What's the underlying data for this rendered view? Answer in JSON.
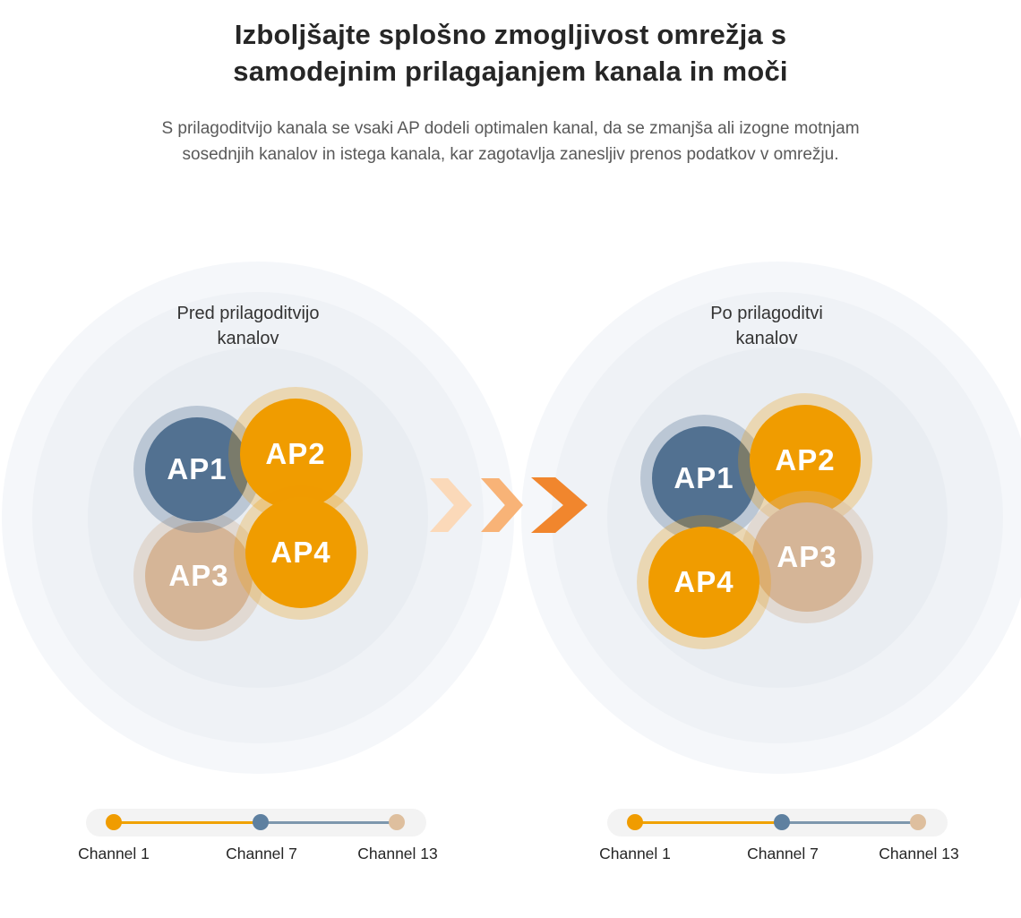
{
  "page": {
    "title_lines": [
      "Izboljšajte splošno zmogljivost omrežja s",
      "samodejnim prilagajanjem kanala in moči"
    ],
    "subtitle_lines": [
      "S prilagoditvijo kanala se vsaki AP dodeli optimalen kanal, da se zmanjša ali izogne motnjam",
      "sosednjih kanalov in istega kanala, kar zagotavlja zanesljiv prenos podatkov v omrežju."
    ]
  },
  "before": {
    "heading_lines": [
      "Pred prilagoditvijo",
      "kanalov"
    ],
    "aps": [
      {
        "label": "AP1",
        "channel_color": "#527191"
      },
      {
        "label": "AP2",
        "channel_color": "#f09c00"
      },
      {
        "label": "AP3",
        "channel_color": "#d5b597"
      },
      {
        "label": "AP4",
        "channel_color": "#f09c00"
      }
    ]
  },
  "after": {
    "heading_lines": [
      "Po prilagoditvi",
      "kanalov"
    ],
    "aps": [
      {
        "label": "AP1",
        "channel_color": "#527191"
      },
      {
        "label": "AP2",
        "channel_color": "#f09c00"
      },
      {
        "label": "AP3",
        "channel_color": "#d5b597"
      },
      {
        "label": "AP4",
        "channel_color": "#f09c00"
      }
    ]
  },
  "arrows": {
    "colors": [
      "#fbd9b9",
      "#f8b377",
      "#f1862d"
    ]
  },
  "legend": {
    "items": [
      {
        "label": "Channel 1",
        "color": "#f09c00",
        "line_color": "#f0a200"
      },
      {
        "label": "Channel 7",
        "color": "#5e80a0",
        "line_color": "#7d97ad"
      },
      {
        "label": "Channel 13",
        "color": "#debf9e",
        "line_color": ""
      }
    ]
  }
}
